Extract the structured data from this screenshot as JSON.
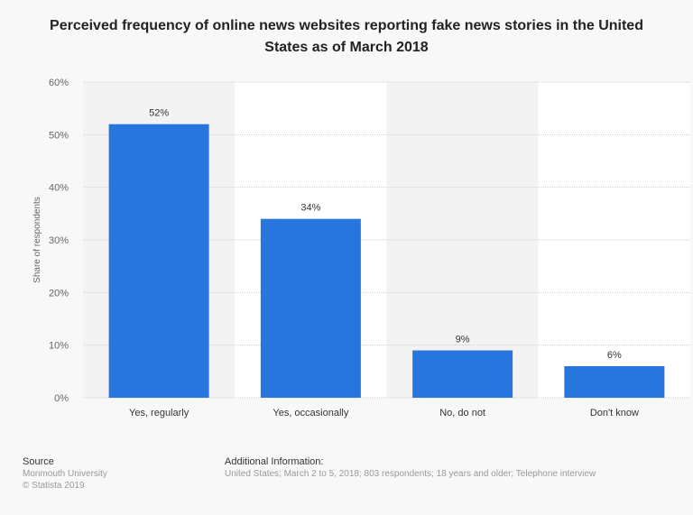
{
  "chart_data": {
    "type": "bar",
    "title": "Perceived frequency of online news websites reporting fake news stories in the United States as of March 2018",
    "ylabel": "Share of respondents",
    "xlabel": "",
    "categories": [
      "Yes, regularly",
      "Yes, occasionally",
      "No, do not",
      "Don't know"
    ],
    "values": [
      52,
      34,
      9,
      6
    ],
    "data_labels": [
      "52%",
      "34%",
      "9%",
      "6%"
    ],
    "ylim": [
      0,
      60
    ],
    "yticks": [
      0,
      10,
      20,
      30,
      40,
      50,
      60
    ],
    "ytick_labels": [
      "0%",
      "10%",
      "20%",
      "30%",
      "40%",
      "50%",
      "60%"
    ],
    "grid": true,
    "bar_color": "#2876dd"
  },
  "footer": {
    "source_heading": "Source",
    "source": "Monmouth University",
    "copyright": "© Statista 2019",
    "info_heading": "Additional Information:",
    "info": "United States; March 2 to 5, 2018; 803 respondents; 18 years and older; Telephone interview"
  }
}
